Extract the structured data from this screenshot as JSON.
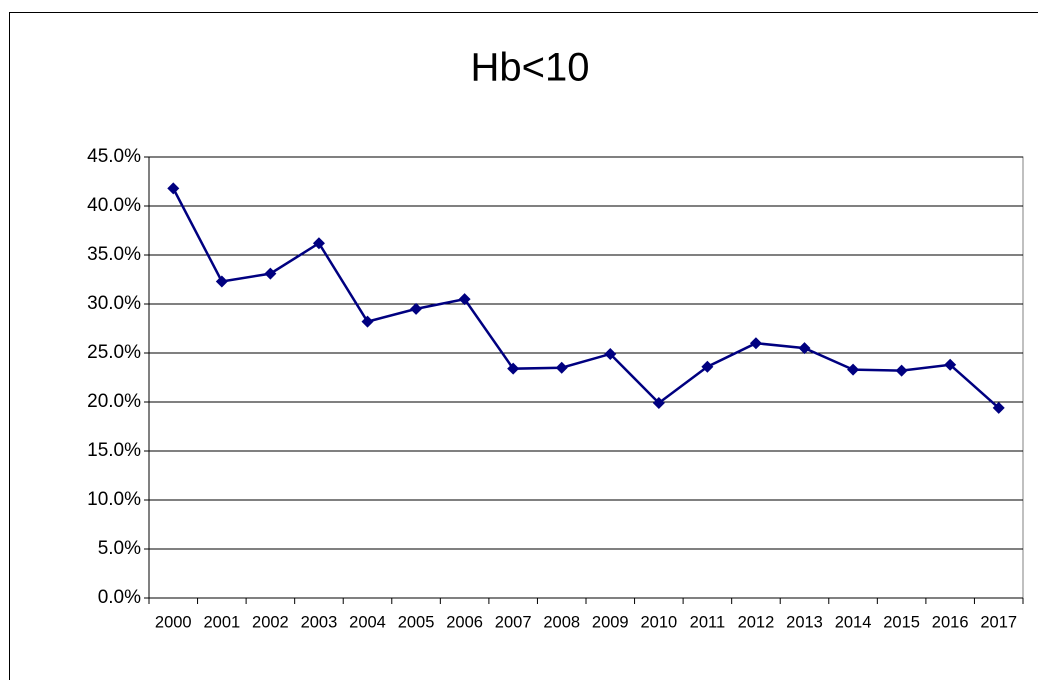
{
  "chart_data": {
    "type": "line",
    "title": "Hb<10",
    "categories": [
      "2000",
      "2001",
      "2002",
      "2003",
      "2004",
      "2005",
      "2006",
      "2007",
      "2008",
      "2009",
      "2010",
      "2011",
      "2012",
      "2013",
      "2014",
      "2015",
      "2016",
      "2017"
    ],
    "values": [
      41.8,
      32.3,
      33.1,
      36.2,
      28.2,
      29.5,
      30.5,
      23.4,
      23.5,
      24.9,
      19.9,
      23.6,
      26.0,
      25.5,
      23.3,
      23.2,
      23.8,
      19.4
    ],
    "color": "#000080",
    "ylim": [
      0,
      45
    ],
    "yticks": [
      {
        "value": 0,
        "label": "0.0%"
      },
      {
        "value": 5,
        "label": "5.0%"
      },
      {
        "value": 10,
        "label": "10.0%"
      },
      {
        "value": 15,
        "label": "15.0%"
      },
      {
        "value": 20,
        "label": "20.0%"
      },
      {
        "value": 25,
        "label": "25.0%"
      },
      {
        "value": 30,
        "label": "30.0%"
      },
      {
        "value": 35,
        "label": "35.0%"
      },
      {
        "value": 40,
        "label": "40.0%"
      },
      {
        "value": 45,
        "label": "45.0%"
      }
    ],
    "grid": true
  }
}
